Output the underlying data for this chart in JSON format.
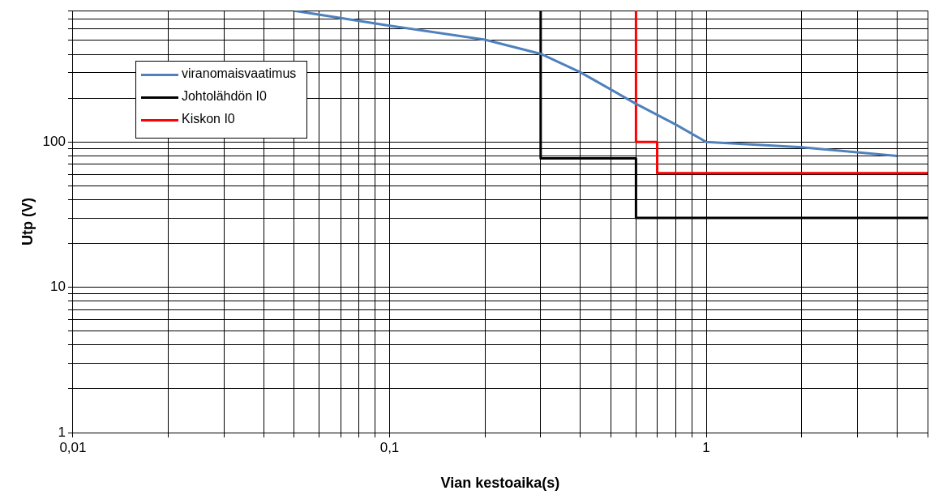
{
  "chart_data": {
    "type": "line",
    "xlabel": "Vian kestoaika(s)",
    "ylabel": "Utp (V)",
    "log": "xy",
    "xlim": [
      0.01,
      5
    ],
    "ylim": [
      1,
      800
    ],
    "xticks": [
      {
        "value": 0.01,
        "label": "0,01"
      },
      {
        "value": 0.02,
        "label": null
      },
      {
        "value": 0.03,
        "label": null
      },
      {
        "value": 0.04,
        "label": null
      },
      {
        "value": 0.05,
        "label": null
      },
      {
        "value": 0.06,
        "label": null
      },
      {
        "value": 0.07,
        "label": null
      },
      {
        "value": 0.08,
        "label": null
      },
      {
        "value": 0.09,
        "label": null
      },
      {
        "value": 0.1,
        "label": "0,1"
      },
      {
        "value": 0.2,
        "label": null
      },
      {
        "value": 0.3,
        "label": null
      },
      {
        "value": 0.4,
        "label": null
      },
      {
        "value": 0.5,
        "label": null
      },
      {
        "value": 0.6,
        "label": null
      },
      {
        "value": 0.7,
        "label": null
      },
      {
        "value": 0.8,
        "label": null
      },
      {
        "value": 0.9,
        "label": null
      },
      {
        "value": 1,
        "label": "1"
      },
      {
        "value": 2,
        "label": null
      },
      {
        "value": 3,
        "label": null
      },
      {
        "value": 4,
        "label": null
      },
      {
        "value": 5,
        "label": null
      }
    ],
    "yticks": [
      1,
      {
        "value": 2,
        "label": null
      },
      {
        "value": 3,
        "label": null
      },
      {
        "value": 4,
        "label": null
      },
      {
        "value": 5,
        "label": null
      },
      {
        "value": 6,
        "label": null
      },
      {
        "value": 7,
        "label": null
      },
      {
        "value": 8,
        "label": null
      },
      {
        "value": 9,
        "label": null
      },
      10,
      {
        "value": 20,
        "label": null
      },
      {
        "value": 30,
        "label": null
      },
      {
        "value": 40,
        "label": null
      },
      {
        "value": 50,
        "label": null
      },
      {
        "value": 60,
        "label": null
      },
      {
        "value": 70,
        "label": null
      },
      {
        "value": 80,
        "label": null
      },
      {
        "value": 90,
        "label": null
      },
      100,
      {
        "value": 200,
        "label": null
      },
      {
        "value": 300,
        "label": null
      },
      {
        "value": 400,
        "label": null
      },
      {
        "value": 500,
        "label": null
      },
      {
        "value": 600,
        "label": null
      },
      {
        "value": 700,
        "label": null
      },
      {
        "value": 800,
        "label": null
      }
    ],
    "grid": true,
    "legend": "top left",
    "marker": "none",
    "line_style": "solid",
    "series": [
      {
        "name": "viranomaisvaatimus",
        "color": "#4f81bd",
        "x": [
          0.05,
          0.1,
          0.2,
          0.3,
          0.4,
          0.6,
          0.8,
          1,
          2,
          4
        ],
        "values": [
          800,
          631,
          505,
          404,
          302,
          183,
          132,
          100,
          92,
          80
        ]
      },
      {
        "name": "Johtolähdön I0",
        "color": "#000000",
        "x": [
          0.3,
          0.3,
          0.6,
          0.6,
          5
        ],
        "values": [
          800,
          77,
          77,
          30,
          30
        ]
      },
      {
        "name": "Kiskon I0",
        "color": "#ff0000",
        "x": [
          0.6,
          0.6,
          0.7,
          0.7,
          5
        ],
        "values": [
          800,
          100,
          100,
          61,
          61
        ]
      }
    ]
  }
}
